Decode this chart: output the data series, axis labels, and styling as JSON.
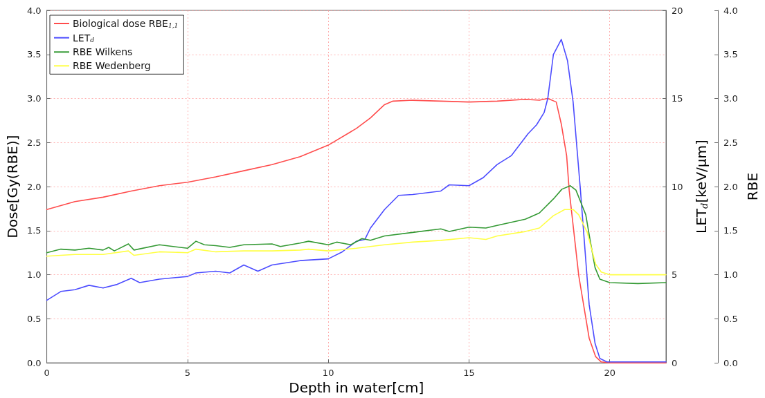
{
  "chart_data": {
    "type": "line",
    "xlabel": "Depth in water[cm]",
    "ylabel": "Dose[Gy(RBE)]",
    "y2label": "LET$_{d}$[keV/µm]",
    "y3label": "RBE",
    "xlim": [
      0,
      22
    ],
    "xticks": [
      0,
      5,
      10,
      15,
      20
    ],
    "ylim": [
      0,
      4
    ],
    "yticks": [
      {
        "value": 0,
        "label": "0.0"
      },
      {
        "value": 0.5,
        "label": "0.5"
      },
      {
        "value": 1,
        "label": "1.0"
      },
      {
        "value": 1.5,
        "label": "1.5"
      },
      {
        "value": 2,
        "label": "2.0"
      },
      {
        "value": 2.5,
        "label": "2.5"
      },
      {
        "value": 3,
        "label": "3.0"
      },
      {
        "value": 3.5,
        "label": "3.5"
      },
      {
        "value": 4,
        "label": "4.0"
      }
    ],
    "y2lim": [
      0,
      20
    ],
    "y2ticks": [
      0,
      5,
      10,
      15,
      20
    ],
    "y3lim": [
      0,
      4
    ],
    "y3ticks": [
      {
        "value": 0,
        "label": "0.0"
      },
      {
        "value": 0.5,
        "label": "0.5"
      },
      {
        "value": 1,
        "label": "1.0"
      },
      {
        "value": 1.5,
        "label": "1.5"
      },
      {
        "value": 2,
        "label": "2.0"
      },
      {
        "value": 2.5,
        "label": "2.5"
      },
      {
        "value": 3,
        "label": "3.0"
      },
      {
        "value": 3.5,
        "label": "3.5"
      },
      {
        "value": 4,
        "label": "4.0"
      }
    ],
    "grid": true,
    "legend": "top left",
    "line_style": "solid",
    "series": [
      {
        "name": "Biological dose RBE$_{1,1}$",
        "color": "#ff4c4c",
        "x": [
          0,
          1,
          2,
          3,
          4,
          5,
          6,
          7,
          8,
          9,
          10,
          11,
          11.5,
          12,
          12.3,
          13,
          14,
          15,
          16,
          17,
          17.5,
          17.8,
          18.1,
          18.28,
          18.47,
          18.56,
          18.9,
          19.27,
          19.5,
          19.7,
          20,
          22
        ],
        "values": [
          1.74,
          1.83,
          1.88,
          1.95,
          2.01,
          2.05,
          2.11,
          2.18,
          2.25,
          2.34,
          2.47,
          2.66,
          2.78,
          2.93,
          2.97,
          2.98,
          2.97,
          2.96,
          2.97,
          2.99,
          2.98,
          3.0,
          2.96,
          2.71,
          2.35,
          1.96,
          0.99,
          0.28,
          0.07,
          0.01,
          0.0,
          0.0
        ]
      },
      {
        "name": "LET$_{d}$",
        "color": "#4c4cff",
        "axis": "y2",
        "x": [
          0,
          0.5,
          1,
          1.5,
          2,
          2.5,
          3,
          3.3,
          4,
          5,
          5.3,
          6,
          6.5,
          7,
          7.5,
          8,
          9,
          10,
          10.5,
          11,
          11.3,
          11.5,
          12,
          12.5,
          13,
          14,
          14.3,
          15,
          15.5,
          16,
          16.5,
          17.1,
          17.4,
          17.67,
          17.8,
          18.0,
          18.28,
          18.5,
          18.7,
          18.96,
          19.27,
          19.48,
          19.65,
          19.9,
          22
        ],
        "values": [
          3.55,
          4.05,
          4.15,
          4.4,
          4.25,
          4.45,
          4.8,
          4.55,
          4.75,
          4.9,
          5.1,
          5.2,
          5.1,
          5.55,
          5.2,
          5.55,
          5.8,
          5.9,
          6.3,
          6.9,
          7.0,
          7.65,
          8.7,
          9.5,
          9.55,
          9.75,
          10.1,
          10.05,
          10.5,
          11.25,
          11.75,
          13.0,
          13.5,
          14.2,
          15.0,
          17.5,
          18.35,
          17.15,
          14.8,
          9.8,
          3.3,
          1.1,
          0.25,
          0.05,
          0.05
        ]
      },
      {
        "name": "RBE Wilkens",
        "color": "#339933",
        "axis": "y3",
        "x": [
          0,
          0.5,
          1,
          1.5,
          2,
          2.2,
          2.4,
          2.9,
          3.1,
          4,
          5,
          5.3,
          5.6,
          6,
          6.5,
          7,
          8,
          8.3,
          9,
          9.3,
          10,
          10.3,
          10.8,
          11.2,
          11.5,
          12,
          13,
          14,
          14.3,
          15,
          15.6,
          16,
          17,
          17.5,
          18,
          18.3,
          18.6,
          18.8,
          19,
          19.15,
          19.3,
          19.48,
          19.65,
          20,
          21,
          22
        ],
        "values": [
          1.25,
          1.29,
          1.28,
          1.3,
          1.28,
          1.31,
          1.27,
          1.35,
          1.28,
          1.34,
          1.3,
          1.38,
          1.34,
          1.33,
          1.31,
          1.34,
          1.35,
          1.32,
          1.36,
          1.38,
          1.34,
          1.37,
          1.34,
          1.41,
          1.39,
          1.44,
          1.48,
          1.52,
          1.49,
          1.54,
          1.53,
          1.56,
          1.63,
          1.7,
          1.86,
          1.97,
          2.01,
          1.96,
          1.8,
          1.68,
          1.4,
          1.08,
          0.95,
          0.91,
          0.9,
          0.91
        ]
      },
      {
        "name": "RBE Wedenberg",
        "color": "#ffff44",
        "axis": "y3",
        "x": [
          0,
          1,
          2,
          2.9,
          3.1,
          4,
          5,
          5.3,
          6,
          7,
          8,
          9,
          9.3,
          10,
          11,
          11.5,
          12,
          13,
          14,
          15,
          15.6,
          16,
          17,
          17.5,
          18,
          18.4,
          18.7,
          18.9,
          19.2,
          19.5,
          19.7,
          20,
          22
        ],
        "values": [
          1.21,
          1.23,
          1.23,
          1.27,
          1.22,
          1.26,
          1.25,
          1.29,
          1.26,
          1.27,
          1.27,
          1.28,
          1.29,
          1.27,
          1.3,
          1.32,
          1.34,
          1.37,
          1.39,
          1.42,
          1.4,
          1.44,
          1.49,
          1.53,
          1.67,
          1.74,
          1.74,
          1.68,
          1.48,
          1.12,
          1.03,
          1.0,
          1.0
        ]
      }
    ]
  }
}
